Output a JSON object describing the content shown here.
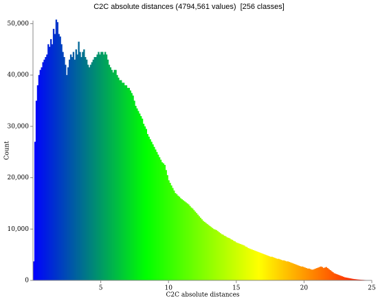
{
  "chart_data": {
    "type": "histogram",
    "title": "C2C absolute distances (4794,561 values)  [256 classes]",
    "x_label": "C2C absolute distances",
    "y_label": "Count",
    "colormap": [
      "#0000ff",
      "#00ff00",
      "#ffff00",
      "#ff0000"
    ],
    "xlim": [
      0,
      25
    ],
    "xticks": [
      5,
      10,
      15,
      20,
      25
    ],
    "ylim": [
      0,
      50600
    ],
    "yticks": [
      0,
      {
        "value": 10000,
        "label": "10,000"
      },
      {
        "value": 20000,
        "label": "20,000"
      },
      {
        "value": 30000,
        "label": "30,000"
      },
      {
        "value": 40000,
        "label": "40,000"
      },
      {
        "value": 50000,
        "label": "50,000"
      }
    ],
    "bins": [
      0,
      0.098,
      0.195,
      0.293,
      0.391,
      0.488,
      0.586,
      0.684,
      0.781,
      0.879,
      0.977,
      1.074,
      1.172,
      1.27,
      1.367,
      1.465,
      1.563,
      1.66,
      1.758,
      1.855,
      1.953,
      2.051,
      2.148,
      2.246,
      2.344,
      2.441,
      2.539,
      2.637,
      2.734,
      2.832,
      2.93,
      3.027,
      3.125,
      3.223,
      3.32,
      3.418,
      3.516,
      3.613,
      3.711,
      3.809,
      3.906,
      4.004,
      4.102,
      4.199,
      4.297,
      4.395,
      4.492,
      4.59,
      4.688,
      4.785,
      4.883,
      4.98,
      5.078,
      5.176,
      5.273,
      5.371,
      5.469,
      5.566,
      5.664,
      5.762,
      5.859,
      5.957,
      6.055,
      6.152,
      6.25,
      6.348,
      6.445,
      6.543,
      6.641,
      6.738,
      6.836,
      6.934,
      7.031,
      7.129,
      7.227,
      7.324,
      7.422,
      7.52,
      7.617,
      7.715,
      7.813,
      7.91,
      8.008,
      8.105,
      8.203,
      8.301,
      8.398,
      8.496,
      8.594,
      8.691,
      8.789,
      8.887,
      8.984,
      9.082,
      9.18,
      9.277,
      9.375,
      9.473,
      9.57,
      9.668,
      9.766,
      9.863,
      9.961,
      10.059,
      10.156,
      10.254,
      10.352,
      10.449,
      10.547,
      10.645,
      10.742,
      10.84,
      10.938,
      11.035,
      11.133,
      11.23,
      11.328,
      11.426,
      11.523,
      11.621,
      11.719,
      11.816,
      11.914,
      12.012,
      12.109,
      12.207,
      12.305,
      12.402,
      12.5,
      12.598,
      12.695,
      12.793,
      12.891,
      12.988,
      13.086,
      13.184,
      13.281,
      13.379,
      13.477,
      13.574,
      13.672,
      13.77,
      13.867,
      13.965,
      14.063,
      14.16,
      14.258,
      14.355,
      14.453,
      14.551,
      14.648,
      14.746,
      14.844,
      14.941,
      15.039,
      15.137,
      15.234,
      15.332,
      15.43,
      15.527,
      15.625,
      15.723,
      15.82,
      15.918,
      16.016,
      16.113,
      16.211,
      16.309,
      16.406,
      16.504,
      16.602,
      16.699,
      16.797,
      16.895,
      16.992,
      17.09,
      17.188,
      17.285,
      17.383,
      17.48,
      17.578,
      17.676,
      17.773,
      17.871,
      17.969,
      18.066,
      18.164,
      18.262,
      18.359,
      18.457,
      18.555,
      18.652,
      18.75,
      18.848,
      18.945,
      19.043,
      19.141,
      19.238,
      19.336,
      19.434,
      19.531,
      19.629,
      19.727,
      19.824,
      19.922,
      20.02,
      20.117,
      20.215,
      20.313,
      20.41,
      20.508,
      20.605,
      20.703,
      20.801,
      20.898,
      20.996,
      21.094,
      21.191,
      21.289,
      21.387,
      21.484,
      21.582,
      21.68,
      21.777,
      21.875,
      21.973,
      22.07,
      22.168,
      22.266,
      22.363,
      22.461,
      22.559,
      22.656,
      22.754,
      22.852,
      22.949,
      23.047,
      23.145,
      23.242,
      23.34,
      23.438,
      23.535,
      23.633,
      23.73,
      23.828,
      23.926,
      24.023,
      24.121,
      24.219,
      24.316,
      24.414,
      24.512,
      24.609,
      24.707,
      24.805,
      24.902,
      25
    ],
    "values": [
      3700,
      27000,
      35000,
      38000,
      40000,
      41000,
      41500,
      42500,
      43000,
      43500,
      44000,
      46000,
      45500,
      47000,
      46000,
      49000,
      48000,
      50800,
      50300,
      48000,
      47500,
      46000,
      44500,
      43500,
      42000,
      40000,
      41500,
      43000,
      44000,
      43500,
      44500,
      43000,
      45000,
      44000,
      46500,
      44500,
      43500,
      44500,
      45000,
      43500,
      43000,
      42000,
      41500,
      42000,
      42500,
      43000,
      43500,
      43500,
      44000,
      44500,
      44000,
      44500,
      44500,
      44000,
      44500,
      44000,
      43000,
      42000,
      41500,
      41000,
      40500,
      41000,
      41000,
      40000,
      39500,
      39000,
      39000,
      38500,
      38500,
      38000,
      38000,
      37500,
      37500,
      37000,
      36500,
      36000,
      35000,
      34000,
      33500,
      33000,
      32500,
      32000,
      31500,
      30500,
      30000,
      29500,
      28500,
      28000,
      27500,
      27000,
      26500,
      26000,
      25500,
      25000,
      24500,
      24000,
      23500,
      23000,
      22800,
      22500,
      21500,
      20500,
      19500,
      19000,
      18500,
      18000,
      17500,
      17000,
      16800,
      16500,
      16300,
      16000,
      15800,
      15600,
      15400,
      15200,
      15000,
      14800,
      14500,
      14200,
      14000,
      13700,
      13400,
      13100,
      12800,
      12500,
      12200,
      11900,
      11600,
      11400,
      11200,
      11000,
      10800,
      10600,
      10400,
      10200,
      10000,
      9900,
      9800,
      9600,
      9400,
      9200,
      9000,
      8900,
      8700,
      8600,
      8400,
      8300,
      8200,
      8000,
      7900,
      7700,
      7600,
      7400,
      7300,
      7200,
      7100,
      7000,
      6900,
      6800,
      6600,
      6500,
      6300,
      6200,
      6100,
      6000,
      5900,
      5800,
      5700,
      5600,
      5500,
      5400,
      5300,
      5200,
      5100,
      5000,
      4900,
      4800,
      4700,
      4600,
      4600,
      4500,
      4400,
      4300,
      4200,
      4200,
      4100,
      4000,
      3900,
      3900,
      3800,
      3700,
      3700,
      3600,
      3500,
      3400,
      3300,
      3200,
      3100,
      3000,
      2900,
      2800,
      2700,
      2700,
      2600,
      2500,
      2400,
      2300,
      2300,
      2200,
      2100,
      2100,
      2200,
      2300,
      2400,
      2500,
      2600,
      2700,
      2600,
      2400,
      2500,
      2600,
      2400,
      2200,
      2000,
      1800,
      1600,
      1400,
      1300,
      1200,
      1100,
      1000,
      900,
      800,
      700,
      600,
      550,
      500,
      450,
      400,
      350,
      300,
      260,
      230,
      200,
      170,
      150,
      130,
      110,
      100,
      80,
      70,
      60,
      50,
      40,
      30
    ]
  }
}
